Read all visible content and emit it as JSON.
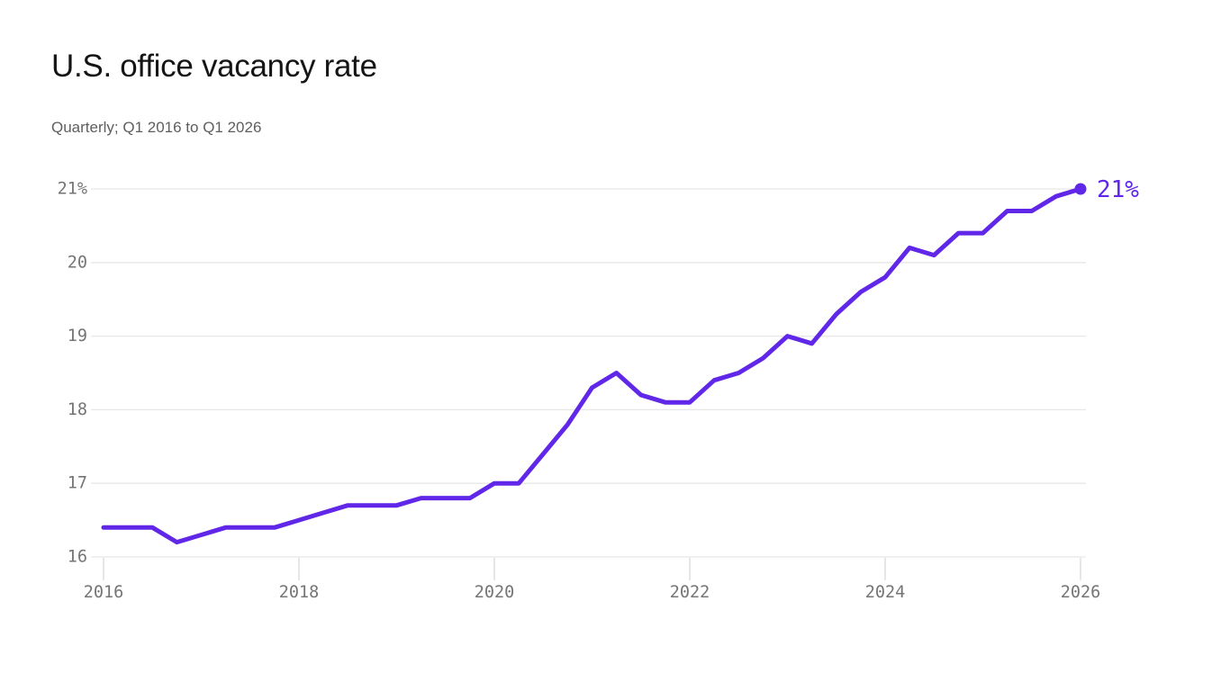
{
  "header": {
    "title": "U.S. office vacancy rate",
    "subtitle": "Quarterly; Q1 2016 to Q1 2026"
  },
  "chart_data": {
    "type": "line",
    "title": "U.S. office vacancy rate",
    "subtitle": "Quarterly; Q1 2016 to Q1 2026",
    "unit": "percent",
    "frequency": "quarterly",
    "x": [
      "Q1 2016",
      "Q2 2016",
      "Q3 2016",
      "Q4 2016",
      "Q1 2017",
      "Q2 2017",
      "Q3 2017",
      "Q4 2017",
      "Q1 2018",
      "Q2 2018",
      "Q3 2018",
      "Q4 2018",
      "Q1 2019",
      "Q2 2019",
      "Q3 2019",
      "Q4 2019",
      "Q1 2020",
      "Q2 2020",
      "Q3 2020",
      "Q4 2020",
      "Q1 2021",
      "Q2 2021",
      "Q3 2021",
      "Q4 2021",
      "Q1 2022",
      "Q2 2022",
      "Q3 2022",
      "Q4 2022",
      "Q1 2023",
      "Q2 2023",
      "Q3 2023",
      "Q4 2023",
      "Q1 2024",
      "Q2 2024",
      "Q3 2024",
      "Q4 2024",
      "Q1 2025",
      "Q2 2025",
      "Q3 2025",
      "Q4 2025",
      "Q1 2026"
    ],
    "series": [
      {
        "name": "U.S. office vacancy rate",
        "values": [
          16.4,
          16.4,
          16.4,
          16.2,
          16.3,
          16.4,
          16.4,
          16.4,
          16.5,
          16.6,
          16.7,
          16.7,
          16.7,
          16.8,
          16.8,
          16.8,
          17.0,
          17.0,
          17.4,
          17.8,
          18.3,
          18.5,
          18.2,
          18.1,
          18.1,
          18.4,
          18.5,
          18.7,
          19.0,
          18.9,
          19.3,
          19.6,
          19.8,
          20.2,
          20.1,
          20.4,
          20.4,
          20.7,
          20.7,
          20.9,
          21.0
        ]
      }
    ],
    "ylim": [
      16,
      21
    ],
    "y_ticks": [
      {
        "value": 21,
        "label": "21%"
      },
      {
        "value": 20,
        "label": "20"
      },
      {
        "value": 19,
        "label": "19"
      },
      {
        "value": 18,
        "label": "18"
      },
      {
        "value": 17,
        "label": "17"
      },
      {
        "value": 16,
        "label": "16"
      }
    ],
    "x_ticks": [
      {
        "index": 0,
        "label": "2016"
      },
      {
        "index": 8,
        "label": "2018"
      },
      {
        "index": 16,
        "label": "2020"
      },
      {
        "index": 24,
        "label": "2022"
      },
      {
        "index": 32,
        "label": "2024"
      },
      {
        "index": 40,
        "label": "2026"
      }
    ],
    "grid": "horizontal",
    "legend": "none",
    "end_annotation": {
      "label": "21%",
      "value": 21.0
    },
    "colors": {
      "line": "#6127e8",
      "annotation": "#6127e8",
      "grid": "#e7e7e7",
      "tick_mark": "#d9d9d9",
      "axis_text": "#757575",
      "title": "#151515",
      "subtitle": "#5e5e5e"
    }
  }
}
